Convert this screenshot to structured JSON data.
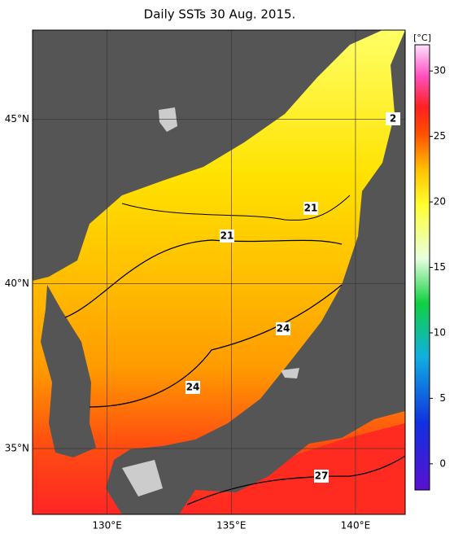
{
  "title": "Daily SSTs 30 Aug. 2015.",
  "map": {
    "lon_range": [
      127,
      142
    ],
    "lat_range": [
      33,
      47.7
    ],
    "lon_ticks": [
      {
        "value": 130,
        "label": "130°E"
      },
      {
        "value": 135,
        "label": "135°E"
      },
      {
        "value": 140,
        "label": "140°E"
      }
    ],
    "lat_ticks": [
      {
        "value": 35,
        "label": "35°N"
      },
      {
        "value": 40,
        "label": "40°N"
      },
      {
        "value": 45,
        "label": "45°N"
      }
    ],
    "contour_labels": [
      "2",
      "21",
      "21",
      "24",
      "24",
      "27"
    ]
  },
  "colorbar": {
    "unit": "[°C]",
    "range": [
      -2,
      32
    ],
    "ticks": [
      0,
      5,
      10,
      15,
      20,
      25,
      30
    ]
  }
}
